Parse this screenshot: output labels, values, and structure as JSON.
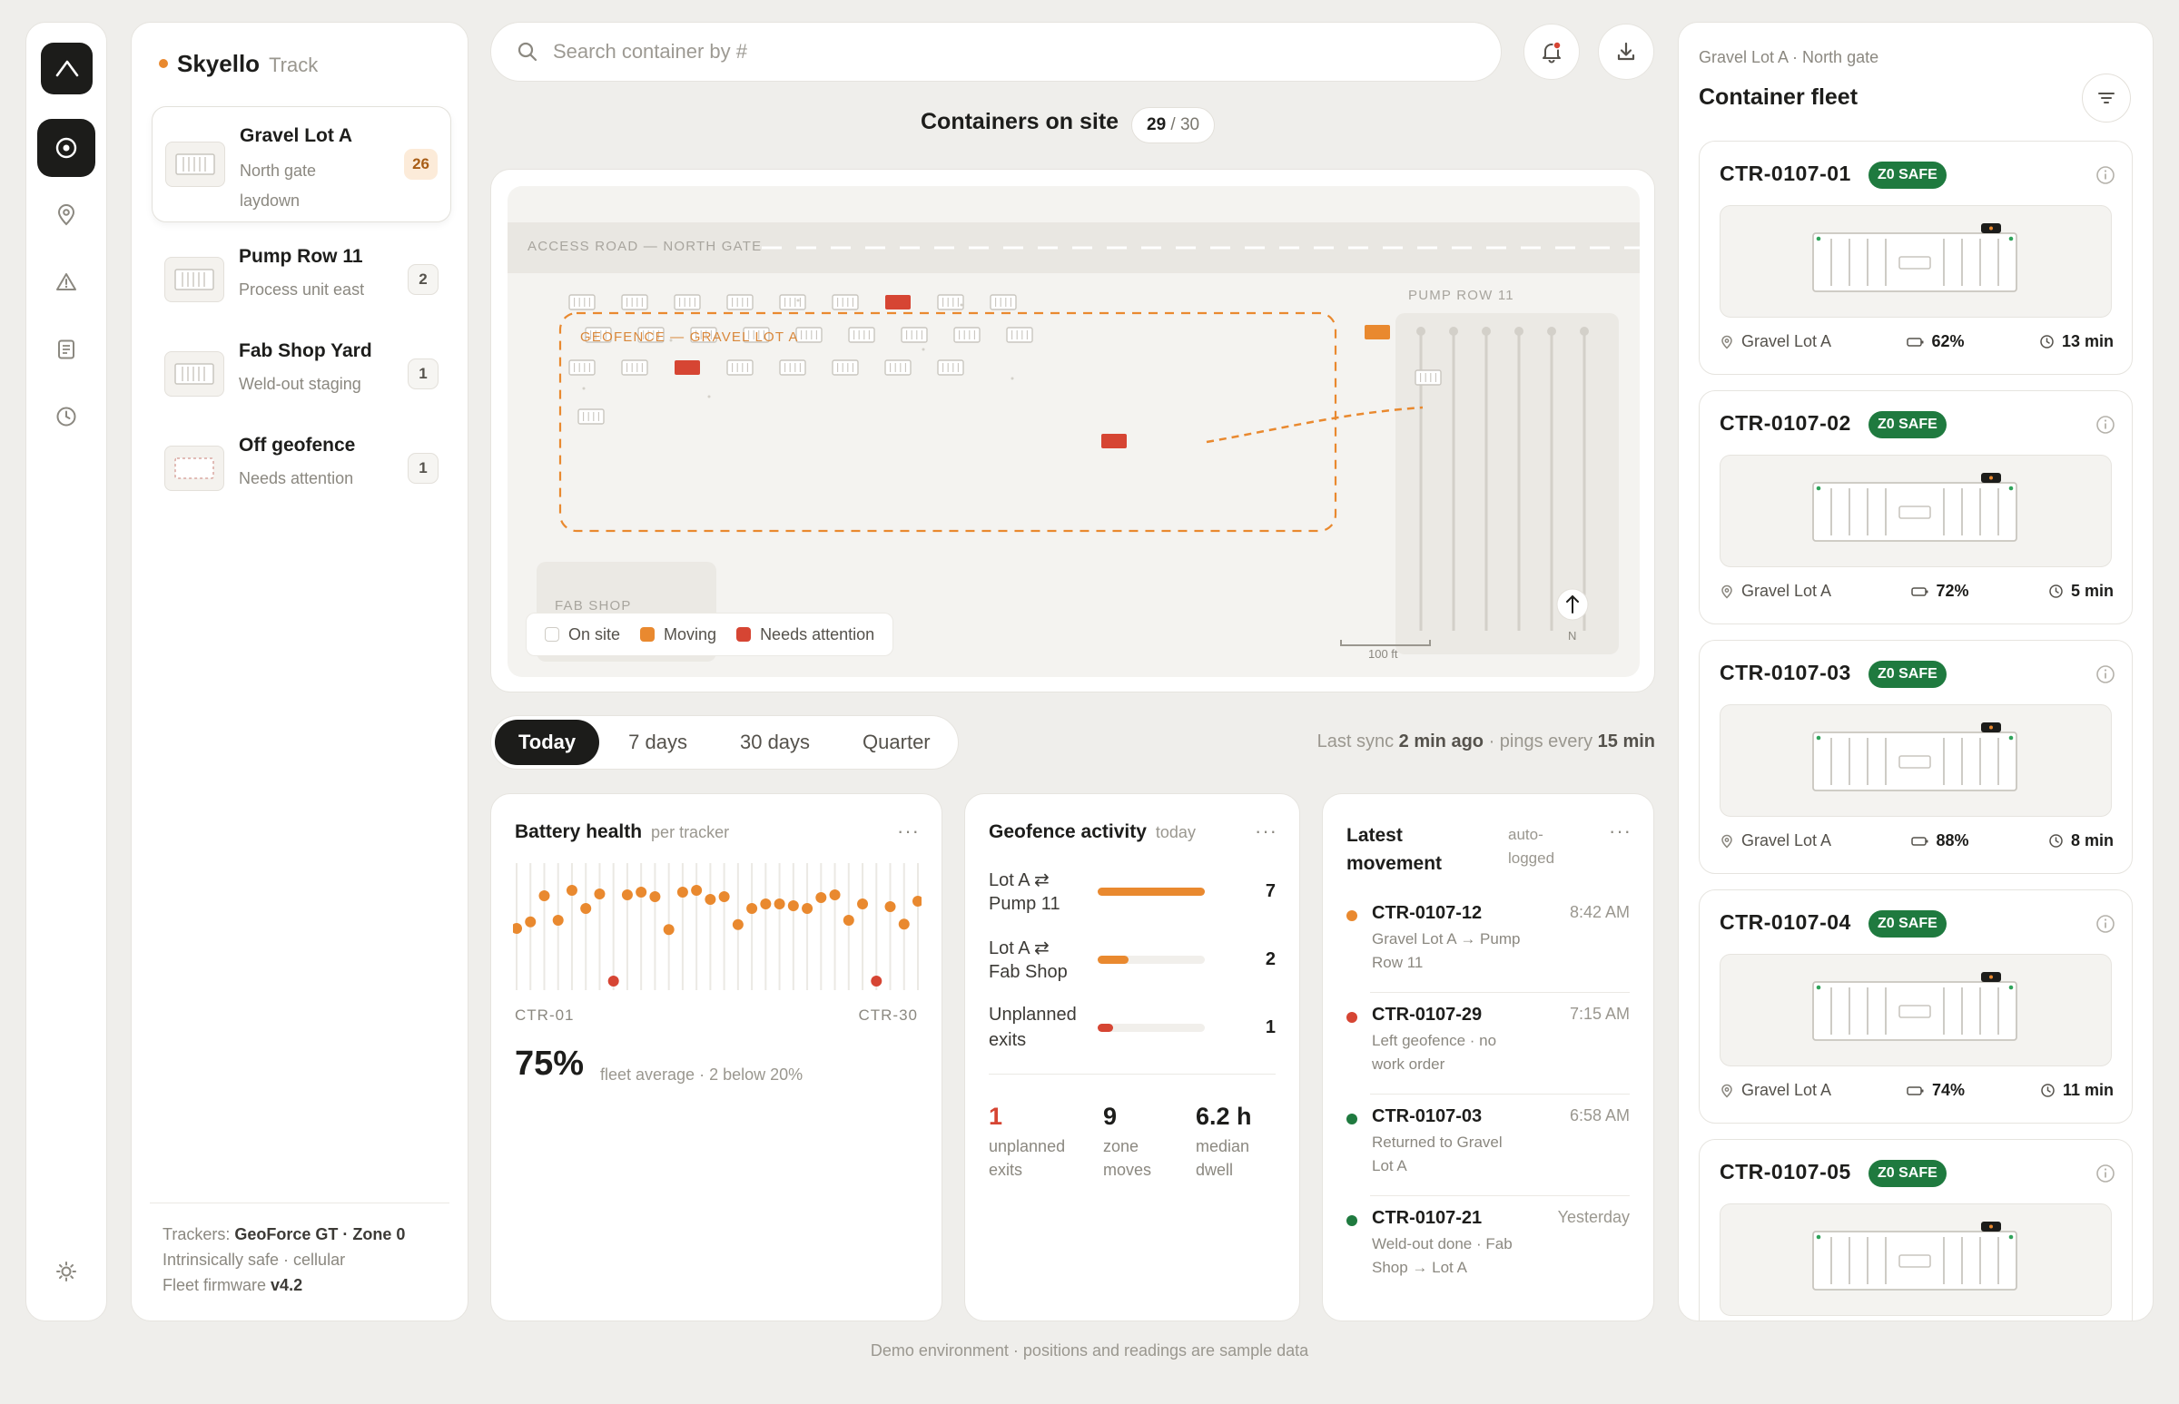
{
  "app": {
    "brand": "Skyello",
    "product": "Track"
  },
  "rail": {
    "items": [
      "overview",
      "locations",
      "alerts",
      "reports",
      "history",
      "settings"
    ]
  },
  "sites": [
    {
      "name": "Gravel Lot A",
      "sub": "North gate laydown",
      "count": "26"
    },
    {
      "name": "Pump Row 11",
      "sub": "Process unit east",
      "count": "2"
    },
    {
      "name": "Fab Shop Yard",
      "sub": "Weld-out staging",
      "count": "1"
    },
    {
      "name": "Off geofence",
      "sub": "Needs attention",
      "count": "1"
    }
  ],
  "trackers": {
    "label": "Trackers:",
    "model": "GeoForce GT · Zone 0",
    "line2": "Intrinsically safe · cellular",
    "firmware_label": "Fleet firmware",
    "firmware": "v4.2"
  },
  "search": {
    "placeholder": "Search container by #"
  },
  "containers": {
    "title": "Containers on site",
    "on_site": "29",
    "total": "/ 30"
  },
  "map": {
    "access_road": "ACCESS ROAD — NORTH GATE",
    "geofence": "GEOFENCE — GRAVEL LOT A",
    "pump_row": "PUMP ROW 11",
    "fab_shop": "FAB SHOP",
    "scale": "100 ft",
    "north": "N",
    "legend": [
      "On site",
      "Moving",
      "Needs attention"
    ]
  },
  "range": {
    "tabs": [
      "Today",
      "7 days",
      "30 days",
      "Quarter"
    ],
    "active": 0
  },
  "sync": {
    "prefix": "Last sync",
    "ago": "2 min ago",
    "mid": "· pings every",
    "interval": "15 min"
  },
  "battery": {
    "title": "Battery health",
    "sub": "per tracker",
    "start_label": "CTR-01",
    "end_label": "CTR-30",
    "big": "75%",
    "caption": "fleet average · 2 below 20%"
  },
  "geofence_activity": {
    "title": "Geofence activity",
    "sub": "today",
    "rows": [
      {
        "label1": "Lot A ⇄",
        "label2": "Pump 11",
        "value": "7",
        "fill": 1.0,
        "color": "#e9892f"
      },
      {
        "label1": "Lot A ⇄",
        "label2": "Fab Shop",
        "value": "2",
        "fill": 0.29,
        "color": "#e9892f"
      },
      {
        "label1": "Unplanned",
        "label2": "exits",
        "value": "1",
        "fill": 0.14,
        "color": "#d64533"
      }
    ],
    "stats": [
      {
        "value": "1",
        "label1": "unplanned",
        "label2": "exits"
      },
      {
        "value": "9",
        "label1": "zone",
        "label2": "moves"
      },
      {
        "value": "6.2 h",
        "label1": "median",
        "label2": "dwell"
      }
    ]
  },
  "movement": {
    "title1": "Latest",
    "title2": "movement",
    "sub1": "auto-",
    "sub2": "logged",
    "items": [
      {
        "id": "CTR-0107-12",
        "time": "8:42 AM",
        "color": "#e9892f",
        "l1": "Gravel Lot A → Pump",
        "l2": "Row 11"
      },
      {
        "id": "CTR-0107-29",
        "time": "7:15 AM",
        "color": "#d64533",
        "l1": "Left geofence · no",
        "l2": "work order"
      },
      {
        "id": "CTR-0107-03",
        "time": "6:58 AM",
        "color": "#1f7a3f",
        "l1": "Returned to Gravel",
        "l2": "Lot A"
      },
      {
        "id": "CTR-0107-21",
        "time": "Yesterday",
        "color": "#1f7a3f",
        "l1": "Weld-out done · Fab",
        "l2": "Shop → Lot A"
      }
    ]
  },
  "fleet": {
    "crumb": "Gravel Lot A · North gate",
    "title": "Container fleet",
    "badge": "Z0 SAFE",
    "cards": [
      {
        "id": "CTR-0107-01",
        "location": "Gravel Lot A",
        "battery": "62%",
        "ping": "13 min"
      },
      {
        "id": "CTR-0107-02",
        "location": "Gravel Lot A",
        "battery": "72%",
        "ping": "5 min"
      },
      {
        "id": "CTR-0107-03",
        "location": "Gravel Lot A",
        "battery": "88%",
        "ping": "8 min"
      },
      {
        "id": "CTR-0107-04",
        "location": "Gravel Lot A",
        "battery": "74%",
        "ping": "11 min"
      },
      {
        "id": "CTR-0107-05",
        "location": "Gravel Lot A",
        "battery": "",
        "ping": ""
      }
    ]
  },
  "footnote": "Demo environment · positions and readings are sample data",
  "colors": {
    "accent": "#e9892f",
    "alert": "#d64533",
    "safe": "#1f7a3f",
    "ink": "#1c1c1a"
  }
}
